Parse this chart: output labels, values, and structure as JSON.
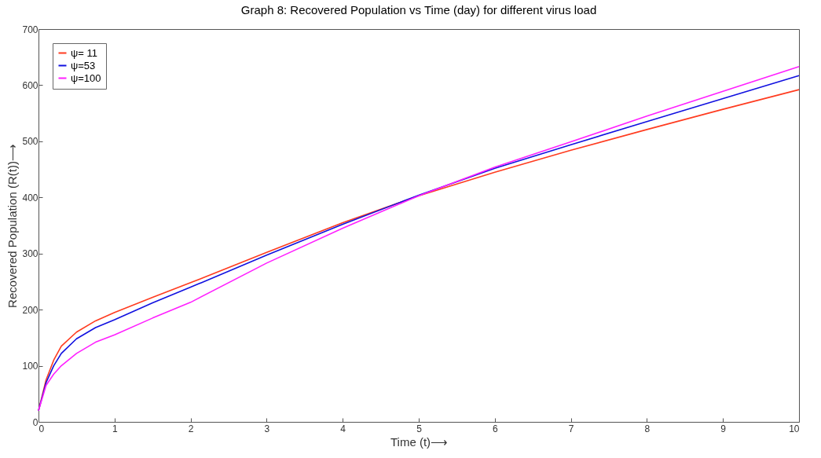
{
  "chart_data": {
    "type": "line",
    "title": "Graph 8: Recovered Population vs Time (day) for different virus load",
    "xlabel": "Time (t)⟶",
    "ylabel": "Recovered Population (R(t))⟶",
    "x": [
      0,
      0.1,
      0.2,
      0.3,
      0.5,
      0.75,
      1,
      1.5,
      2,
      3,
      4,
      5,
      6,
      7,
      8,
      9,
      10
    ],
    "series": [
      {
        "name": "ψ= 11",
        "color": "#ff3b1f",
        "values": [
          20,
          75,
          110,
          135,
          160,
          180,
          195,
          222,
          248,
          302,
          355,
          403,
          445,
          484,
          521,
          557,
          592
        ]
      },
      {
        "name": "ψ=53",
        "color": "#1010e0",
        "values": [
          20,
          70,
          100,
          122,
          148,
          168,
          182,
          212,
          240,
          297,
          352,
          404,
          452,
          494,
          535,
          576,
          617
        ]
      },
      {
        "name": "ψ=100",
        "color": "#ff1fff",
        "values": [
          20,
          65,
          85,
          100,
          122,
          142,
          155,
          185,
          213,
          283,
          345,
          403,
          454,
          499,
          545,
          589,
          633
        ]
      }
    ],
    "xlim": [
      0,
      10
    ],
    "xticks": [
      0,
      1,
      2,
      3,
      4,
      5,
      6,
      7,
      8,
      9,
      10
    ],
    "ylim": [
      0,
      700
    ],
    "yticks": [
      0,
      100,
      200,
      300,
      400,
      500,
      600,
      700
    ],
    "grid": false,
    "legend": "top left",
    "line_style": "solid"
  }
}
